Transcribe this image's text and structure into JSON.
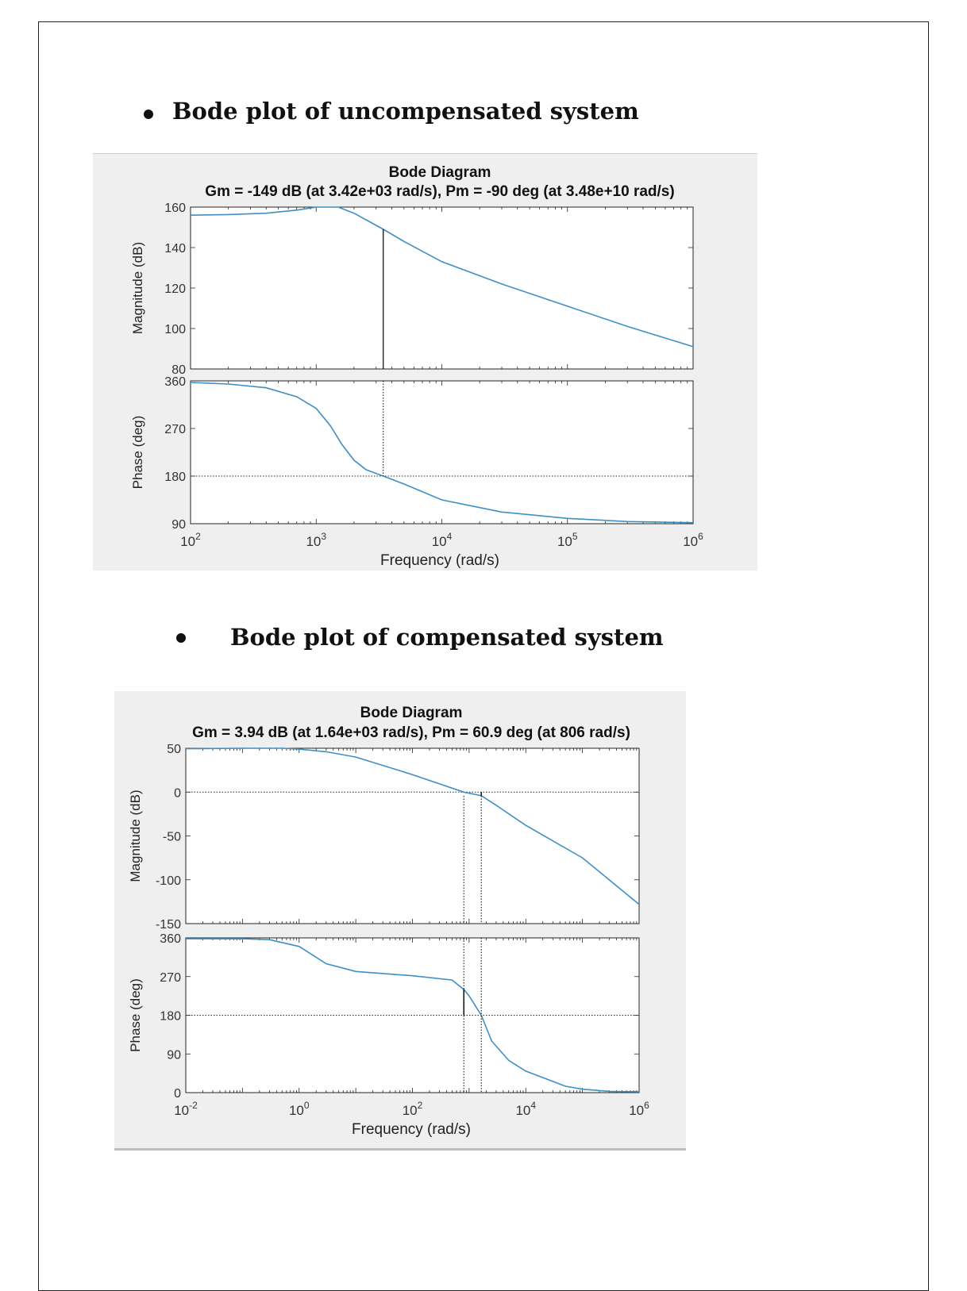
{
  "sections": [
    {
      "bullet": "•",
      "heading": "Bode plot of uncompensated system"
    },
    {
      "bullet": "•",
      "heading": "Bode plot of compensated system"
    }
  ],
  "colors": {
    "curve": "#3d8fc4",
    "axis": "#262626",
    "marker": "#000000",
    "figure_bg": "#efefef"
  },
  "chart_data": [
    {
      "type": "line",
      "title": "Bode Diagram",
      "subtitle": "Gm = -149 dB (at 3.42e+03 rad/s),  Pm = -90 deg (at 3.48e+10 rad/s)",
      "xlabel": "Frequency  (rad/s)",
      "x_scale": "log",
      "xlim": [
        100,
        1000000
      ],
      "x_ticks": [
        {
          "v": 100,
          "base": "10",
          "exp": "2"
        },
        {
          "v": 1000,
          "base": "10",
          "exp": "3"
        },
        {
          "v": 10000,
          "base": "10",
          "exp": "4"
        },
        {
          "v": 100000,
          "base": "10",
          "exp": "5"
        },
        {
          "v": 1000000,
          "base": "10",
          "exp": "6"
        }
      ],
      "margin_frequency": 3420,
      "magnitude": {
        "ylabel": "Magnitude (dB)",
        "ylim": [
          80,
          160
        ],
        "yticks": [
          "80",
          "100",
          "120",
          "140",
          "160"
        ],
        "x": [
          100,
          200,
          400,
          700,
          1000,
          1500,
          2000,
          3000,
          3420,
          5000,
          10000,
          30000,
          100000,
          300000,
          1000000
        ],
        "y": [
          156,
          156.3,
          157,
          158.5,
          160,
          160,
          157,
          151,
          149,
          143,
          133,
          122,
          111,
          101,
          91
        ]
      },
      "phase": {
        "ylabel": "Phase (deg)",
        "ylim": [
          90,
          360
        ],
        "yticks": [
          "90",
          "180",
          "270",
          "360"
        ],
        "x": [
          100,
          200,
          400,
          700,
          1000,
          1300,
          1600,
          2000,
          2500,
          3420,
          5000,
          10000,
          30000,
          100000,
          300000,
          1000000
        ],
        "y": [
          357,
          354,
          347,
          330,
          308,
          275,
          240,
          210,
          192,
          180,
          165,
          135,
          112,
          100,
          94,
          92
        ],
        "ref_line": 180
      }
    },
    {
      "type": "line",
      "title": "Bode Diagram",
      "subtitle": "Gm = 3.94 dB (at 1.64e+03 rad/s),  Pm = 60.9 deg (at 806 rad/s)",
      "xlabel": "Frequency  (rad/s)",
      "x_scale": "log",
      "xlim": [
        0.01,
        1000000
      ],
      "x_ticks": [
        {
          "v": 0.01,
          "base": "10",
          "exp": "-2"
        },
        {
          "v": 1,
          "base": "10",
          "exp": "0"
        },
        {
          "v": 100,
          "base": "10",
          "exp": "2"
        },
        {
          "v": 10000,
          "base": "10",
          "exp": "4"
        },
        {
          "v": 1000000,
          "base": "10",
          "exp": "6"
        }
      ],
      "pm_frequency": 806,
      "gm_frequency": 1640,
      "magnitude": {
        "ylabel": "Magnitude (dB)",
        "ylim": [
          -150,
          50
        ],
        "yticks": [
          "-150",
          "-100",
          "-50",
          "0",
          "50"
        ],
        "x": [
          0.01,
          0.1,
          0.5,
          1,
          3,
          10,
          100,
          806,
          1640,
          3000,
          10000,
          100000,
          1000000
        ],
        "y": [
          49.5,
          50,
          50,
          49,
          46,
          40,
          20,
          0,
          -4,
          -15,
          -38,
          -75,
          -128
        ],
        "ref_line": 0
      },
      "phase": {
        "ylabel": "Phase (deg)",
        "ylim": [
          0,
          360
        ],
        "yticks": [
          "0",
          "90",
          "180",
          "270",
          "360"
        ],
        "x": [
          0.01,
          0.1,
          0.3,
          1,
          3,
          10,
          100,
          500,
          806,
          1000,
          1640,
          2500,
          5000,
          10000,
          50000,
          100000,
          300000,
          1000000
        ],
        "y": [
          358,
          358,
          356,
          340,
          300,
          282,
          272,
          262,
          240,
          225,
          180,
          120,
          75,
          50,
          15,
          8,
          3,
          2
        ],
        "ref_line": 180
      }
    }
  ]
}
